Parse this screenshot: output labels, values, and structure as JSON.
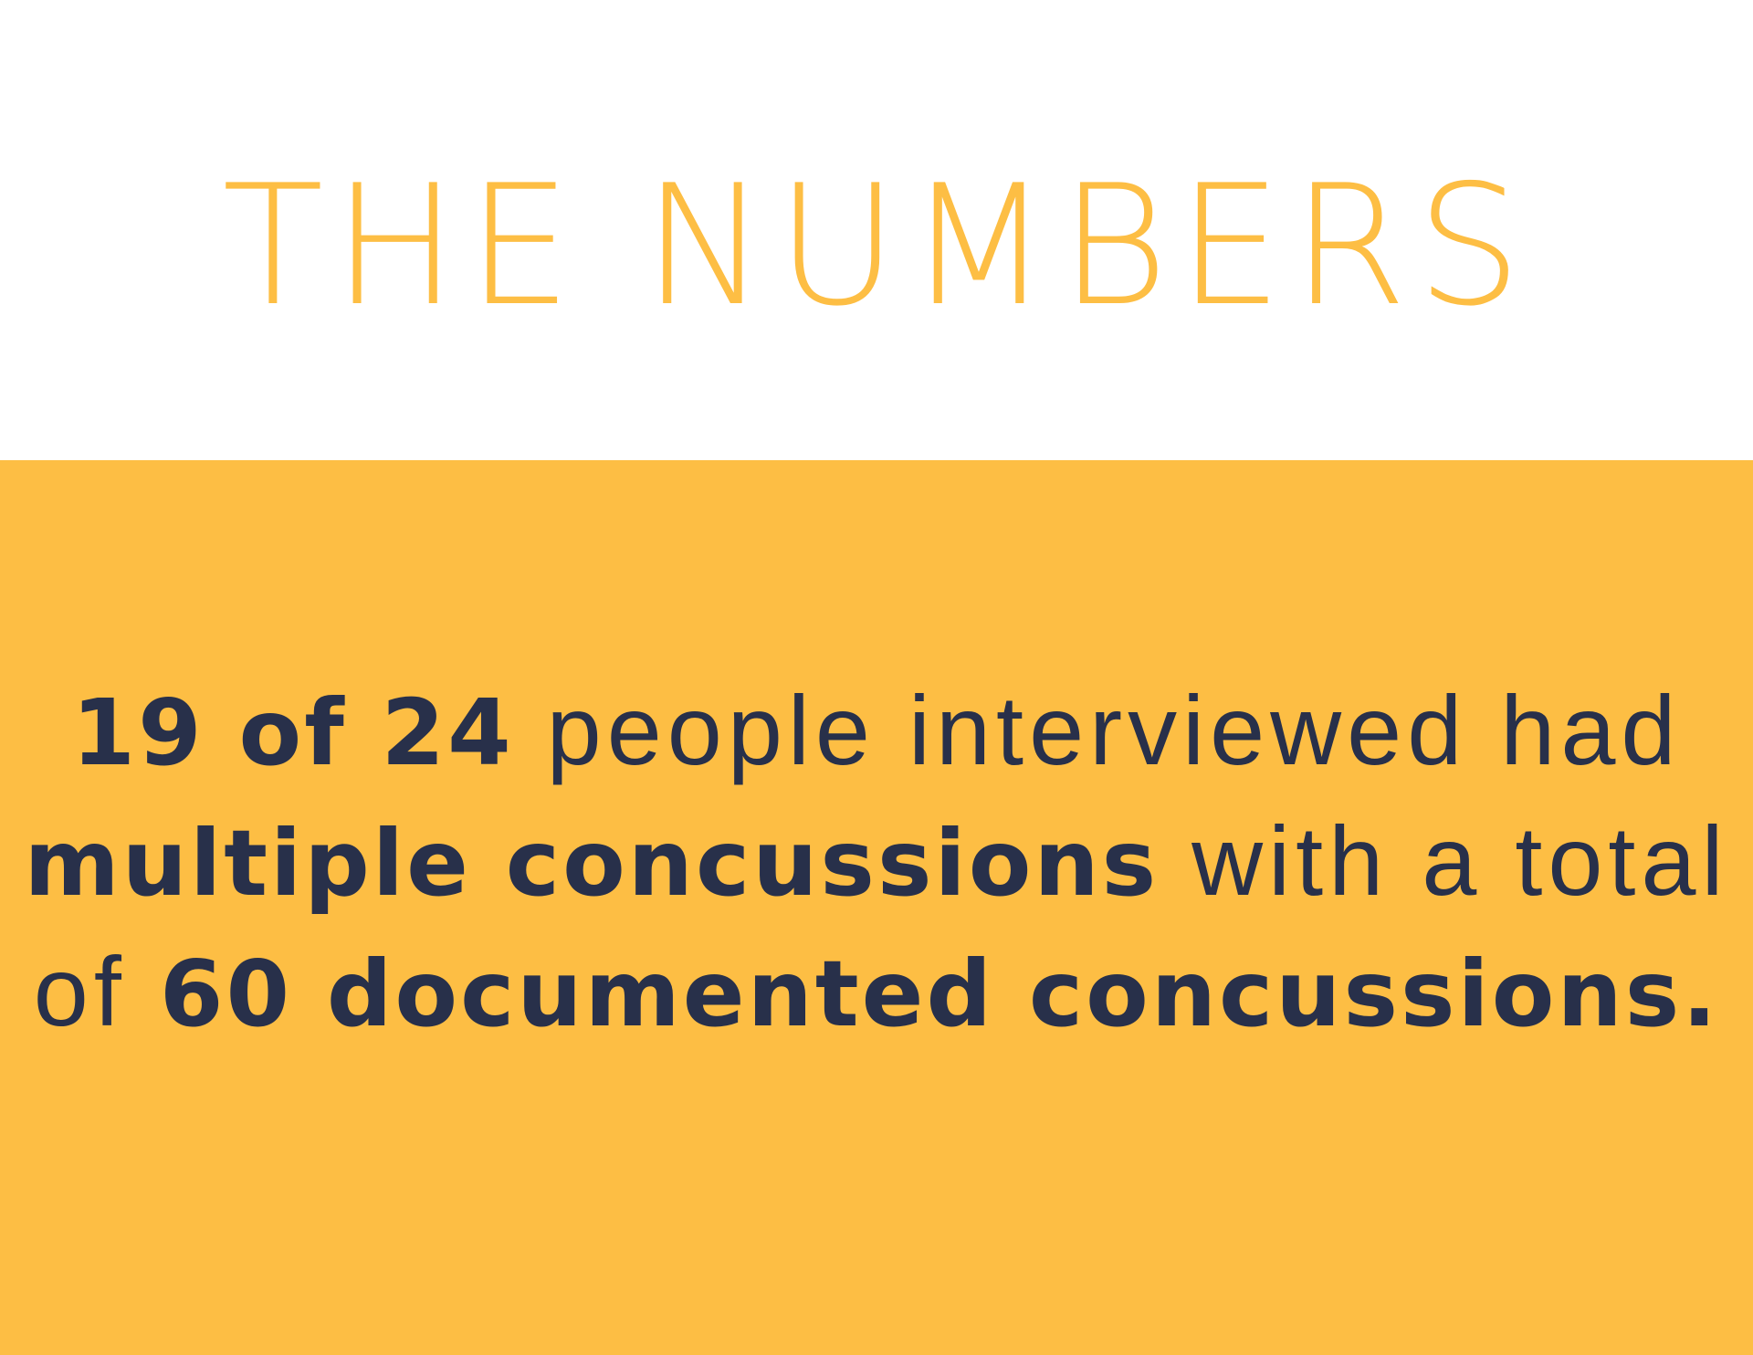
{
  "title": "THE NUMBERS",
  "colors": {
    "accent_yellow": "#FDBE44",
    "text_navy": "#28304A",
    "background": "#FFFFFF"
  },
  "statement": {
    "line1": {
      "bold": "19 of 24",
      "regular": " people interviewed had"
    },
    "line2": {
      "bold": "multiple concussions",
      "regular": " with a total"
    },
    "line3": {
      "regular": "of ",
      "bold": "60 documented concussions."
    }
  }
}
